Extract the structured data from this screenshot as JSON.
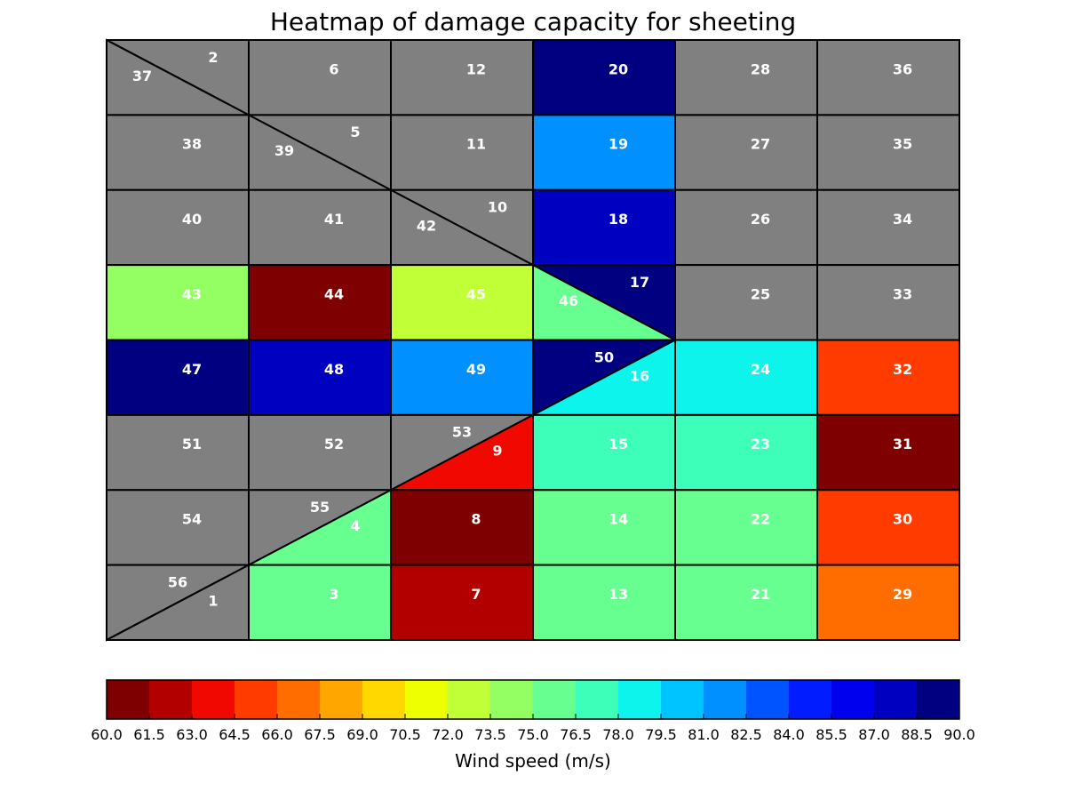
{
  "chart_data": {
    "type": "heatmap",
    "title": "Heatmap of damage capacity for sheeting",
    "colorbar": {
      "label": "Wind speed (m/s)",
      "min": 60.0,
      "max": 90.0,
      "step": 1.5,
      "ticks": [
        "60.0",
        "61.5",
        "63.0",
        "64.5",
        "66.0",
        "67.5",
        "69.0",
        "70.5",
        "72.0",
        "73.5",
        "75.0",
        "76.5",
        "78.0",
        "79.5",
        "81.0",
        "82.5",
        "84.0",
        "85.5",
        "87.0",
        "88.5",
        "90.0"
      ],
      "colors": [
        "#7f0000",
        "#b20000",
        "#f10800",
        "#ff3b00",
        "#ff6c00",
        "#ffa600",
        "#ffd800",
        "#edff00",
        "#c1ff36",
        "#94ff62",
        "#66ff90",
        "#3dffba",
        "#0cf4eb",
        "#00c4ff",
        "#0090ff",
        "#0054ff",
        "#001cff",
        "#0000ee",
        "#0000c1",
        "#000080"
      ]
    },
    "grid": {
      "columns": 6,
      "rows": 8,
      "no_data_color": "#808080"
    },
    "cells": [
      {
        "id": "2",
        "col": 0,
        "row": 0,
        "shape": "tri",
        "corner": "tr",
        "color": "#808080"
      },
      {
        "id": "37",
        "col": 0,
        "row": 0,
        "shape": "tri",
        "corner": "bl",
        "color": "#808080"
      },
      {
        "id": "6",
        "col": 1,
        "row": 0,
        "shape": "rect",
        "color": "#808080"
      },
      {
        "id": "12",
        "col": 2,
        "row": 0,
        "shape": "rect",
        "color": "#808080"
      },
      {
        "id": "20",
        "col": 3,
        "row": 0,
        "shape": "rect",
        "color": "#000080"
      },
      {
        "id": "28",
        "col": 4,
        "row": 0,
        "shape": "rect",
        "color": "#808080"
      },
      {
        "id": "36",
        "col": 5,
        "row": 0,
        "shape": "rect",
        "color": "#808080"
      },
      {
        "id": "38",
        "col": 0,
        "row": 1,
        "shape": "rect",
        "color": "#808080"
      },
      {
        "id": "5",
        "col": 1,
        "row": 1,
        "shape": "tri",
        "corner": "tr",
        "color": "#808080"
      },
      {
        "id": "39",
        "col": 1,
        "row": 1,
        "shape": "tri",
        "corner": "bl",
        "color": "#808080"
      },
      {
        "id": "11",
        "col": 2,
        "row": 1,
        "shape": "rect",
        "color": "#808080"
      },
      {
        "id": "19",
        "col": 3,
        "row": 1,
        "shape": "rect",
        "color": "#0090ff"
      },
      {
        "id": "27",
        "col": 4,
        "row": 1,
        "shape": "rect",
        "color": "#808080"
      },
      {
        "id": "35",
        "col": 5,
        "row": 1,
        "shape": "rect",
        "color": "#808080"
      },
      {
        "id": "40",
        "col": 0,
        "row": 2,
        "shape": "rect",
        "color": "#808080"
      },
      {
        "id": "41",
        "col": 1,
        "row": 2,
        "shape": "rect",
        "color": "#808080"
      },
      {
        "id": "10",
        "col": 2,
        "row": 2,
        "shape": "tri",
        "corner": "tr",
        "color": "#808080"
      },
      {
        "id": "42",
        "col": 2,
        "row": 2,
        "shape": "tri",
        "corner": "bl",
        "color": "#808080"
      },
      {
        "id": "18",
        "col": 3,
        "row": 2,
        "shape": "rect",
        "color": "#0000c1"
      },
      {
        "id": "26",
        "col": 4,
        "row": 2,
        "shape": "rect",
        "color": "#808080"
      },
      {
        "id": "34",
        "col": 5,
        "row": 2,
        "shape": "rect",
        "color": "#808080"
      },
      {
        "id": "43",
        "col": 0,
        "row": 3,
        "shape": "rect",
        "color": "#94ff62"
      },
      {
        "id": "44",
        "col": 1,
        "row": 3,
        "shape": "rect",
        "color": "#7f0000"
      },
      {
        "id": "45",
        "col": 2,
        "row": 3,
        "shape": "rect",
        "color": "#c1ff36"
      },
      {
        "id": "17",
        "col": 3,
        "row": 3,
        "shape": "tri",
        "corner": "tr",
        "color": "#000080"
      },
      {
        "id": "46",
        "col": 3,
        "row": 3,
        "shape": "tri",
        "corner": "bl",
        "color": "#66ff90"
      },
      {
        "id": "25",
        "col": 4,
        "row": 3,
        "shape": "rect",
        "color": "#808080"
      },
      {
        "id": "33",
        "col": 5,
        "row": 3,
        "shape": "rect",
        "color": "#808080"
      },
      {
        "id": "47",
        "col": 0,
        "row": 4,
        "shape": "rect",
        "color": "#000080"
      },
      {
        "id": "48",
        "col": 1,
        "row": 4,
        "shape": "rect",
        "color": "#0000c1"
      },
      {
        "id": "49",
        "col": 2,
        "row": 4,
        "shape": "rect",
        "color": "#0090ff"
      },
      {
        "id": "50",
        "col": 3,
        "row": 4,
        "shape": "tri",
        "corner": "tl",
        "color": "#000080"
      },
      {
        "id": "16",
        "col": 3,
        "row": 4,
        "shape": "tri",
        "corner": "br",
        "color": "#0cf4eb"
      },
      {
        "id": "24",
        "col": 4,
        "row": 4,
        "shape": "rect",
        "color": "#0cf4eb"
      },
      {
        "id": "32",
        "col": 5,
        "row": 4,
        "shape": "rect",
        "color": "#ff3b00"
      },
      {
        "id": "51",
        "col": 0,
        "row": 5,
        "shape": "rect",
        "color": "#808080"
      },
      {
        "id": "52",
        "col": 1,
        "row": 5,
        "shape": "rect",
        "color": "#808080"
      },
      {
        "id": "53",
        "col": 2,
        "row": 5,
        "shape": "tri",
        "corner": "tl",
        "color": "#808080"
      },
      {
        "id": "9",
        "col": 2,
        "row": 5,
        "shape": "tri",
        "corner": "br",
        "color": "#f10800"
      },
      {
        "id": "15",
        "col": 3,
        "row": 5,
        "shape": "rect",
        "color": "#3dffba"
      },
      {
        "id": "23",
        "col": 4,
        "row": 5,
        "shape": "rect",
        "color": "#3dffba"
      },
      {
        "id": "31",
        "col": 5,
        "row": 5,
        "shape": "rect",
        "color": "#7f0000"
      },
      {
        "id": "54",
        "col": 0,
        "row": 6,
        "shape": "rect",
        "color": "#808080"
      },
      {
        "id": "55",
        "col": 1,
        "row": 6,
        "shape": "tri",
        "corner": "tl",
        "color": "#808080"
      },
      {
        "id": "4",
        "col": 1,
        "row": 6,
        "shape": "tri",
        "corner": "br",
        "color": "#66ff90"
      },
      {
        "id": "8",
        "col": 2,
        "row": 6,
        "shape": "rect",
        "color": "#7f0000"
      },
      {
        "id": "14",
        "col": 3,
        "row": 6,
        "shape": "rect",
        "color": "#66ff90"
      },
      {
        "id": "22",
        "col": 4,
        "row": 6,
        "shape": "rect",
        "color": "#66ff90"
      },
      {
        "id": "30",
        "col": 5,
        "row": 6,
        "shape": "rect",
        "color": "#ff3b00"
      },
      {
        "id": "56",
        "col": 0,
        "row": 7,
        "shape": "tri",
        "corner": "tl",
        "color": "#808080"
      },
      {
        "id": "1",
        "col": 0,
        "row": 7,
        "shape": "tri",
        "corner": "br",
        "color": "#808080"
      },
      {
        "id": "3",
        "col": 1,
        "row": 7,
        "shape": "rect",
        "color": "#66ff90"
      },
      {
        "id": "7",
        "col": 2,
        "row": 7,
        "shape": "rect",
        "color": "#b20000"
      },
      {
        "id": "13",
        "col": 3,
        "row": 7,
        "shape": "rect",
        "color": "#66ff90"
      },
      {
        "id": "21",
        "col": 4,
        "row": 7,
        "shape": "rect",
        "color": "#66ff90"
      },
      {
        "id": "29",
        "col": 5,
        "row": 7,
        "shape": "rect",
        "color": "#ff6c00"
      }
    ]
  }
}
